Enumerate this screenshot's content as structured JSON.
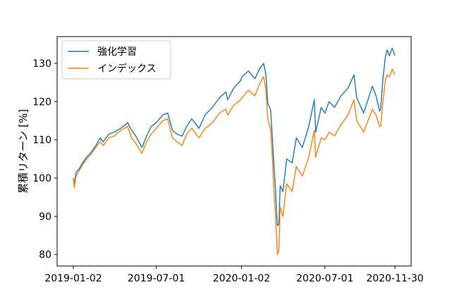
{
  "chart_data": {
    "type": "line",
    "title": "",
    "xlabel": "",
    "ylabel": "累積リターン [%]",
    "x_ticks": [
      "2019-01-02",
      "2019-07-01",
      "2020-01-02",
      "2020-07-01",
      "2020-11-30"
    ],
    "y_ticks": [
      80,
      90,
      100,
      110,
      120,
      130
    ],
    "xlim": [
      "2019-01-02",
      "2020-11-30"
    ],
    "ylim": [
      77,
      137
    ],
    "legend_position": "top-left",
    "grid": false,
    "series": [
      {
        "name": "強化学習",
        "color": "#1f77b4",
        "points": [
          [
            "2019-01-02",
            100
          ],
          [
            "2019-01-04",
            98.5
          ],
          [
            "2019-01-08",
            101.5
          ],
          [
            "2019-01-15",
            102.5
          ],
          [
            "2019-01-22",
            104
          ],
          [
            "2019-01-31",
            105.5
          ],
          [
            "2019-02-08",
            106.5
          ],
          [
            "2019-02-20",
            108.5
          ],
          [
            "2019-03-01",
            110.5
          ],
          [
            "2019-03-08",
            109.5
          ],
          [
            "2019-03-20",
            111.5
          ],
          [
            "2019-04-01",
            112.0
          ],
          [
            "2019-04-15",
            113.0
          ],
          [
            "2019-04-30",
            114.5
          ],
          [
            "2019-05-08",
            112.5
          ],
          [
            "2019-05-15",
            111.5
          ],
          [
            "2019-05-31",
            108.0
          ],
          [
            "2019-06-10",
            111.0
          ],
          [
            "2019-06-20",
            113.5
          ],
          [
            "2019-07-01",
            114.5
          ],
          [
            "2019-07-15",
            116.5
          ],
          [
            "2019-07-26",
            117.0
          ],
          [
            "2019-08-05",
            112.5
          ],
          [
            "2019-08-15",
            111.5
          ],
          [
            "2019-08-26",
            111.0
          ],
          [
            "2019-09-05",
            113.5
          ],
          [
            "2019-09-16",
            115.5
          ],
          [
            "2019-10-02",
            113.0
          ],
          [
            "2019-10-15",
            116.5
          ],
          [
            "2019-10-31",
            118.5
          ],
          [
            "2019-11-15",
            121.0
          ],
          [
            "2019-11-29",
            122.5
          ],
          [
            "2019-12-03",
            120.5
          ],
          [
            "2019-12-16",
            123.5
          ],
          [
            "2019-12-31",
            125.5
          ],
          [
            "2020-01-03",
            126.5
          ],
          [
            "2020-01-17",
            128.0
          ],
          [
            "2020-01-31",
            126.0
          ],
          [
            "2020-02-10",
            128.5
          ],
          [
            "2020-02-19",
            130.0
          ],
          [
            "2020-02-24",
            127.0
          ],
          [
            "2020-02-28",
            119.5
          ],
          [
            "2020-03-05",
            118.0
          ],
          [
            "2020-03-09",
            110.5
          ],
          [
            "2020-03-12",
            104.0
          ],
          [
            "2020-03-16",
            96.5
          ],
          [
            "2020-03-18",
            91.0
          ],
          [
            "2020-03-20",
            87.5
          ],
          [
            "2020-03-23",
            88.0
          ],
          [
            "2020-03-26",
            98.0
          ],
          [
            "2020-04-01",
            96.5
          ],
          [
            "2020-04-09",
            105.0
          ],
          [
            "2020-04-21",
            104.0
          ],
          [
            "2020-04-30",
            110.5
          ],
          [
            "2020-05-13",
            108.0
          ],
          [
            "2020-05-27",
            113.5
          ],
          [
            "2020-06-08",
            120.5
          ],
          [
            "2020-06-11",
            112.0
          ],
          [
            "2020-06-23",
            118.5
          ],
          [
            "2020-07-01",
            117.0
          ],
          [
            "2020-07-10",
            120.0
          ],
          [
            "2020-07-22",
            118.5
          ],
          [
            "2020-08-05",
            121.5
          ],
          [
            "2020-08-20",
            123.5
          ],
          [
            "2020-09-02",
            127.0
          ],
          [
            "2020-09-08",
            121.0
          ],
          [
            "2020-09-23",
            117.0
          ],
          [
            "2020-10-12",
            124.0
          ],
          [
            "2020-10-20",
            121.5
          ],
          [
            "2020-10-28",
            117.5
          ],
          [
            "2020-10-30",
            118.0
          ],
          [
            "2020-11-04",
            126.0
          ],
          [
            "2020-11-09",
            131.5
          ],
          [
            "2020-11-13",
            133.5
          ],
          [
            "2020-11-18",
            132.0
          ],
          [
            "2020-11-24",
            134.0
          ],
          [
            "2020-11-30",
            132.0
          ]
        ]
      },
      {
        "name": "インデックス",
        "color": "#ff7f0e",
        "points": [
          [
            "2019-01-02",
            100
          ],
          [
            "2019-01-04",
            97.5
          ],
          [
            "2019-01-08",
            100.5
          ],
          [
            "2019-01-15",
            102.0
          ],
          [
            "2019-01-22",
            103.5
          ],
          [
            "2019-01-31",
            105.0
          ],
          [
            "2019-02-08",
            106.0
          ],
          [
            "2019-02-20",
            108.0
          ],
          [
            "2019-03-01",
            109.5
          ],
          [
            "2019-03-08",
            108.5
          ],
          [
            "2019-03-20",
            110.5
          ],
          [
            "2019-04-01",
            111.0
          ],
          [
            "2019-04-15",
            112.5
          ],
          [
            "2019-04-30",
            113.5
          ],
          [
            "2019-05-08",
            110.5
          ],
          [
            "2019-05-15",
            109.5
          ],
          [
            "2019-05-31",
            106.5
          ],
          [
            "2019-06-10",
            109.5
          ],
          [
            "2019-06-20",
            111.5
          ],
          [
            "2019-07-01",
            113.0
          ],
          [
            "2019-07-15",
            115.0
          ],
          [
            "2019-07-26",
            115.5
          ],
          [
            "2019-08-05",
            110.5
          ],
          [
            "2019-08-15",
            109.5
          ],
          [
            "2019-08-26",
            108.5
          ],
          [
            "2019-09-05",
            111.5
          ],
          [
            "2019-09-16",
            113.0
          ],
          [
            "2019-10-02",
            110.5
          ],
          [
            "2019-10-15",
            113.0
          ],
          [
            "2019-10-31",
            114.5
          ],
          [
            "2019-11-15",
            117.0
          ],
          [
            "2019-11-29",
            118.0
          ],
          [
            "2019-12-03",
            116.5
          ],
          [
            "2019-12-16",
            119.0
          ],
          [
            "2019-12-31",
            120.5
          ],
          [
            "2020-01-03",
            121.0
          ],
          [
            "2020-01-17",
            123.0
          ],
          [
            "2020-01-31",
            121.5
          ],
          [
            "2020-02-10",
            124.5
          ],
          [
            "2020-02-19",
            126.5
          ],
          [
            "2020-02-24",
            123.0
          ],
          [
            "2020-02-28",
            115.5
          ],
          [
            "2020-03-05",
            113.0
          ],
          [
            "2020-03-09",
            105.5
          ],
          [
            "2020-03-12",
            97.5
          ],
          [
            "2020-03-16",
            89.5
          ],
          [
            "2020-03-18",
            84.5
          ],
          [
            "2020-03-20",
            80.0
          ],
          [
            "2020-03-23",
            81.0
          ],
          [
            "2020-03-26",
            92.5
          ],
          [
            "2020-04-01",
            90.0
          ],
          [
            "2020-04-09",
            98.5
          ],
          [
            "2020-04-21",
            96.5
          ],
          [
            "2020-04-30",
            103.0
          ],
          [
            "2020-05-13",
            100.5
          ],
          [
            "2020-05-27",
            105.5
          ],
          [
            "2020-06-08",
            112.5
          ],
          [
            "2020-06-11",
            105.5
          ],
          [
            "2020-06-23",
            110.5
          ],
          [
            "2020-07-01",
            110.0
          ],
          [
            "2020-07-10",
            112.0
          ],
          [
            "2020-07-22",
            111.0
          ],
          [
            "2020-08-05",
            114.0
          ],
          [
            "2020-08-20",
            116.5
          ],
          [
            "2020-09-02",
            120.5
          ],
          [
            "2020-09-08",
            115.0
          ],
          [
            "2020-09-23",
            112.0
          ],
          [
            "2020-10-12",
            118.0
          ],
          [
            "2020-10-20",
            116.5
          ],
          [
            "2020-10-28",
            113.5
          ],
          [
            "2020-10-30",
            113.5
          ],
          [
            "2020-11-04",
            120.0
          ],
          [
            "2020-11-09",
            125.5
          ],
          [
            "2020-11-13",
            127.0
          ],
          [
            "2020-11-18",
            126.5
          ],
          [
            "2020-11-24",
            128.5
          ],
          [
            "2020-11-30",
            127.0
          ]
        ]
      }
    ]
  }
}
